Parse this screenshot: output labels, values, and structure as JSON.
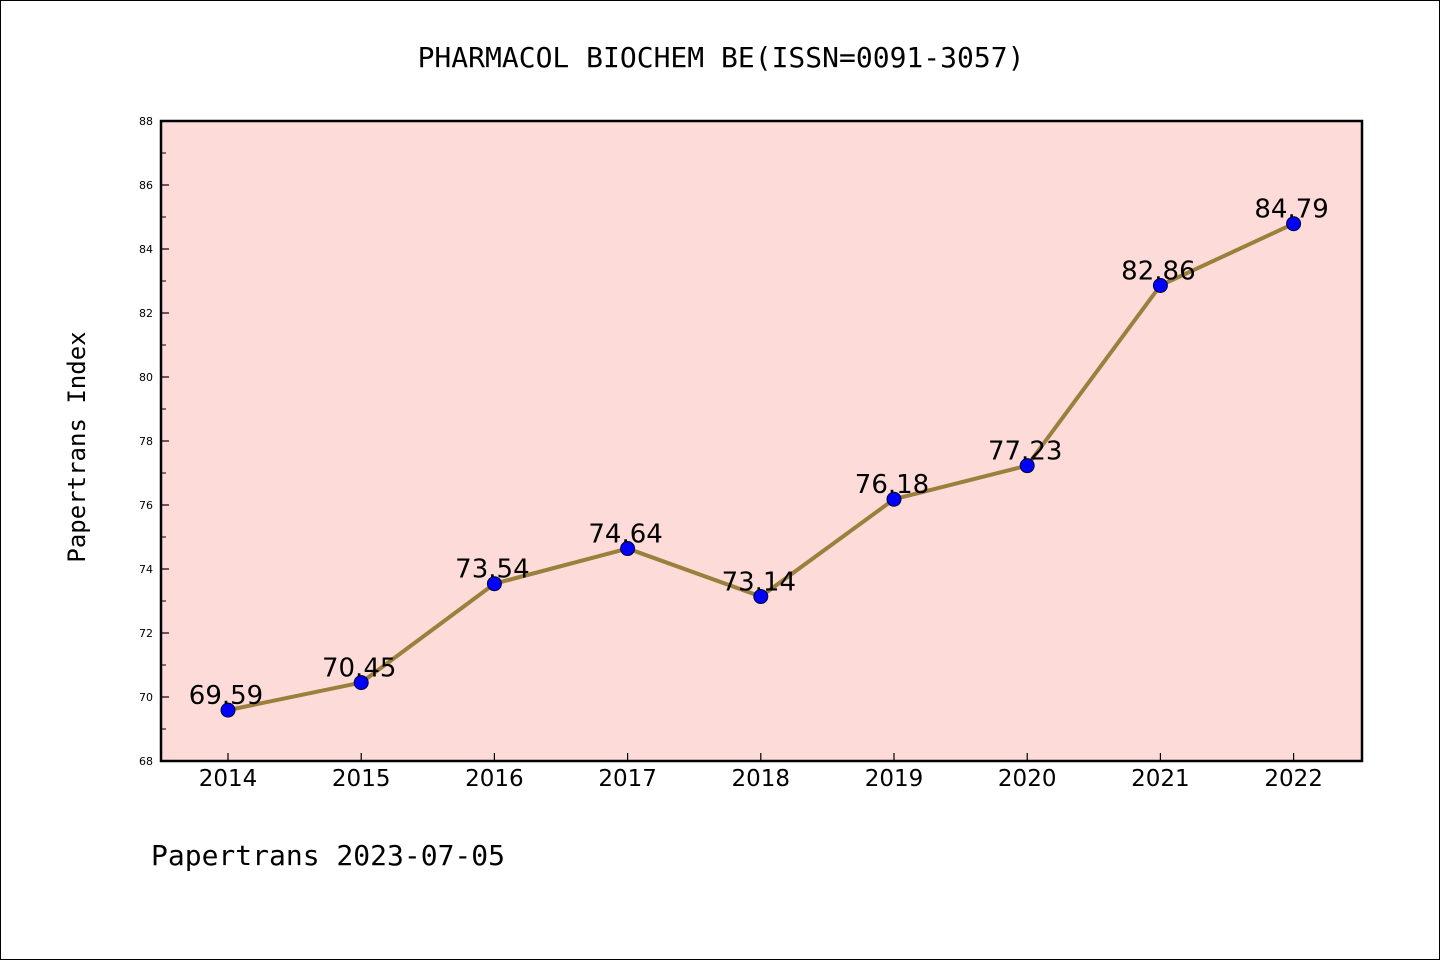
{
  "chart_data": {
    "type": "line",
    "title": "PHARMACOL BIOCHEM BE(ISSN=0091-3057)",
    "xlabel": "",
    "ylabel": "Papertrans Index",
    "categories": [
      "2014",
      "2015",
      "2016",
      "2017",
      "2018",
      "2019",
      "2020",
      "2021",
      "2022"
    ],
    "series": [
      {
        "values": [
          69.59,
          70.45,
          73.54,
          74.64,
          73.14,
          76.18,
          77.23,
          82.86,
          84.79
        ]
      }
    ],
    "data_labels": [
      "69.59",
      "70.45",
      "73.54",
      "74.64",
      "73.14",
      "76.18",
      "77.23",
      "82.86",
      "84.79"
    ],
    "ylim": [
      68,
      88
    ],
    "yticks": [
      68,
      70,
      72,
      74,
      76,
      78,
      80,
      82,
      84,
      86,
      88
    ],
    "grid": false,
    "legend": "none",
    "footer": "Papertrans 2023-07-05",
    "colors": {
      "plot_background": "#fddbd8",
      "line": "#9b7f3c",
      "marker": "#0000ff",
      "axis": "#000000"
    }
  }
}
